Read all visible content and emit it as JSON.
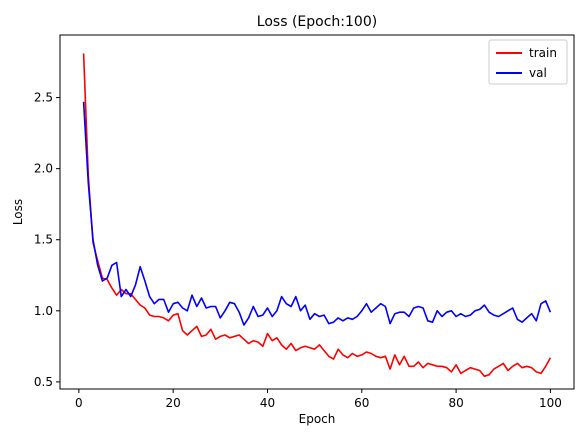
{
  "chart_data": {
    "type": "line",
    "title": "Loss (Epoch:100)",
    "xlabel": "Epoch",
    "ylabel": "Loss",
    "xlim": [
      -4,
      105
    ],
    "ylim": [
      0.45,
      2.94
    ],
    "xticks": [
      0,
      20,
      40,
      60,
      80,
      100
    ],
    "yticks": [
      0.5,
      1.0,
      1.5,
      2.0,
      2.5
    ],
    "ytick_labels": [
      "0.5",
      "1.0",
      "1.5",
      "2.0",
      "2.5"
    ],
    "grid": false,
    "legend_position": "top-right",
    "series": [
      {
        "name": "train",
        "color": "#ff0000",
        "x": [
          1,
          2,
          3,
          4,
          5,
          6,
          7,
          8,
          9,
          10,
          11,
          12,
          13,
          14,
          15,
          16,
          17,
          18,
          19,
          20,
          21,
          22,
          23,
          24,
          25,
          26,
          27,
          28,
          29,
          30,
          31,
          32,
          33,
          34,
          35,
          36,
          37,
          38,
          39,
          40,
          41,
          42,
          43,
          44,
          45,
          46,
          47,
          48,
          49,
          50,
          51,
          52,
          53,
          54,
          55,
          56,
          57,
          58,
          59,
          60,
          61,
          62,
          63,
          64,
          65,
          66,
          67,
          68,
          69,
          70,
          71,
          72,
          73,
          74,
          75,
          76,
          77,
          78,
          79,
          80,
          81,
          82,
          83,
          84,
          85,
          86,
          87,
          88,
          89,
          90,
          91,
          92,
          93,
          94,
          95,
          96,
          97,
          98,
          99,
          100
        ],
        "values": [
          2.81,
          1.95,
          1.48,
          1.35,
          1.23,
          1.22,
          1.16,
          1.11,
          1.15,
          1.12,
          1.12,
          1.08,
          1.04,
          1.02,
          0.97,
          0.96,
          0.96,
          0.95,
          0.93,
          0.97,
          0.98,
          0.86,
          0.83,
          0.86,
          0.89,
          0.82,
          0.83,
          0.87,
          0.8,
          0.82,
          0.83,
          0.81,
          0.82,
          0.83,
          0.8,
          0.77,
          0.79,
          0.78,
          0.75,
          0.84,
          0.79,
          0.81,
          0.76,
          0.73,
          0.77,
          0.72,
          0.74,
          0.75,
          0.74,
          0.73,
          0.76,
          0.72,
          0.68,
          0.66,
          0.73,
          0.69,
          0.67,
          0.7,
          0.68,
          0.69,
          0.71,
          0.7,
          0.68,
          0.67,
          0.68,
          0.59,
          0.69,
          0.62,
          0.68,
          0.61,
          0.61,
          0.64,
          0.6,
          0.63,
          0.62,
          0.61,
          0.61,
          0.6,
          0.57,
          0.62,
          0.56,
          0.58,
          0.6,
          0.59,
          0.58,
          0.54,
          0.55,
          0.59,
          0.61,
          0.63,
          0.58,
          0.61,
          0.63,
          0.6,
          0.61,
          0.6,
          0.57,
          0.56,
          0.61,
          0.67
        ]
      },
      {
        "name": "val",
        "color": "#0000ff",
        "x": [
          1,
          2,
          3,
          4,
          5,
          6,
          7,
          8,
          9,
          10,
          11,
          12,
          13,
          14,
          15,
          16,
          17,
          18,
          19,
          20,
          21,
          22,
          23,
          24,
          25,
          26,
          27,
          28,
          29,
          30,
          31,
          32,
          33,
          34,
          35,
          36,
          37,
          38,
          39,
          40,
          41,
          42,
          43,
          44,
          45,
          46,
          47,
          48,
          49,
          50,
          51,
          52,
          53,
          54,
          55,
          56,
          57,
          58,
          59,
          60,
          61,
          62,
          63,
          64,
          65,
          66,
          67,
          68,
          69,
          70,
          71,
          72,
          73,
          74,
          75,
          76,
          77,
          78,
          79,
          80,
          81,
          82,
          83,
          84,
          85,
          86,
          87,
          88,
          89,
          90,
          91,
          92,
          93,
          94,
          95,
          96,
          97,
          98,
          99,
          100
        ],
        "values": [
          2.47,
          1.9,
          1.5,
          1.32,
          1.21,
          1.23,
          1.32,
          1.34,
          1.1,
          1.15,
          1.1,
          1.18,
          1.31,
          1.21,
          1.1,
          1.05,
          1.08,
          1.08,
          0.99,
          1.05,
          1.06,
          1.02,
          1.0,
          1.11,
          1.03,
          1.09,
          1.02,
          1.03,
          1.03,
          0.95,
          1.0,
          1.06,
          1.05,
          0.99,
          0.9,
          0.95,
          1.03,
          0.96,
          0.97,
          1.02,
          0.96,
          1.0,
          1.1,
          1.05,
          1.03,
          1.1,
          1.0,
          1.04,
          0.94,
          0.98,
          0.96,
          0.97,
          0.91,
          0.92,
          0.95,
          0.93,
          0.95,
          0.94,
          0.96,
          1.0,
          1.05,
          0.99,
          1.02,
          1.05,
          1.03,
          0.91,
          0.98,
          0.99,
          0.99,
          0.96,
          1.02,
          1.03,
          1.02,
          0.93,
          0.92,
          1.0,
          0.96,
          0.99,
          1.0,
          0.96,
          0.98,
          0.96,
          0.97,
          1.0,
          1.01,
          1.04,
          0.99,
          0.97,
          0.96,
          0.98,
          1.0,
          1.02,
          0.94,
          0.92,
          0.95,
          0.98,
          0.93,
          1.05,
          1.07,
          0.99
        ]
      }
    ]
  }
}
